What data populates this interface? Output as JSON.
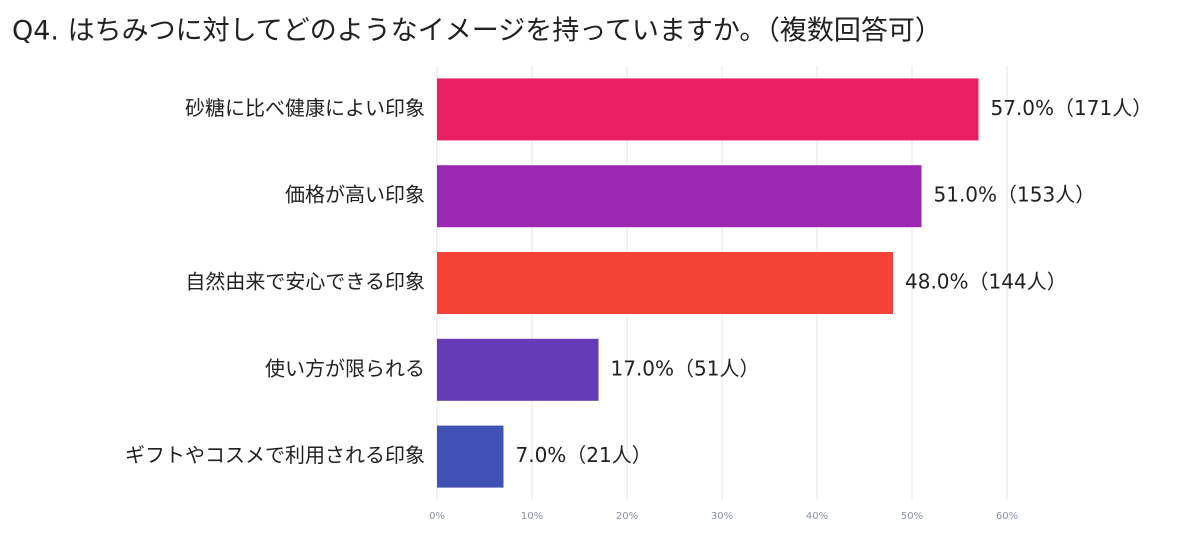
{
  "chart_data": {
    "type": "bar",
    "orientation": "horizontal",
    "title": "Q4. はちみつに対してどのようなイメージを持っていますか。（複数回答可）",
    "categories": [
      "砂糖に比べ健康によい印象",
      "価格が高い印象",
      "自然由来で安心できる印象",
      "使い方が限られる",
      "ギフトやコスメで利用される印象"
    ],
    "values": [
      57,
      51,
      48,
      17,
      7
    ],
    "value_labels": [
      "57.0%（171人）",
      "51.0%（153人）",
      "48.0%（144人）",
      "17.0%（51人）",
      "7.0%（21人）"
    ],
    "colors": [
      "#e91e63",
      "#9c27b0",
      "#f44336",
      "#673ab7",
      "#3f51b5"
    ],
    "xlim": [
      0,
      60
    ],
    "xticks": [
      {
        "value": 0,
        "label": "0%"
      },
      {
        "value": 10,
        "label": "10%"
      },
      {
        "value": 20,
        "label": "20%"
      },
      {
        "value": 30,
        "label": "30%"
      },
      {
        "value": 40,
        "label": "40%"
      },
      {
        "value": 50,
        "label": "50%"
      },
      {
        "value": 60,
        "label": "60%"
      }
    ],
    "grid": true
  }
}
